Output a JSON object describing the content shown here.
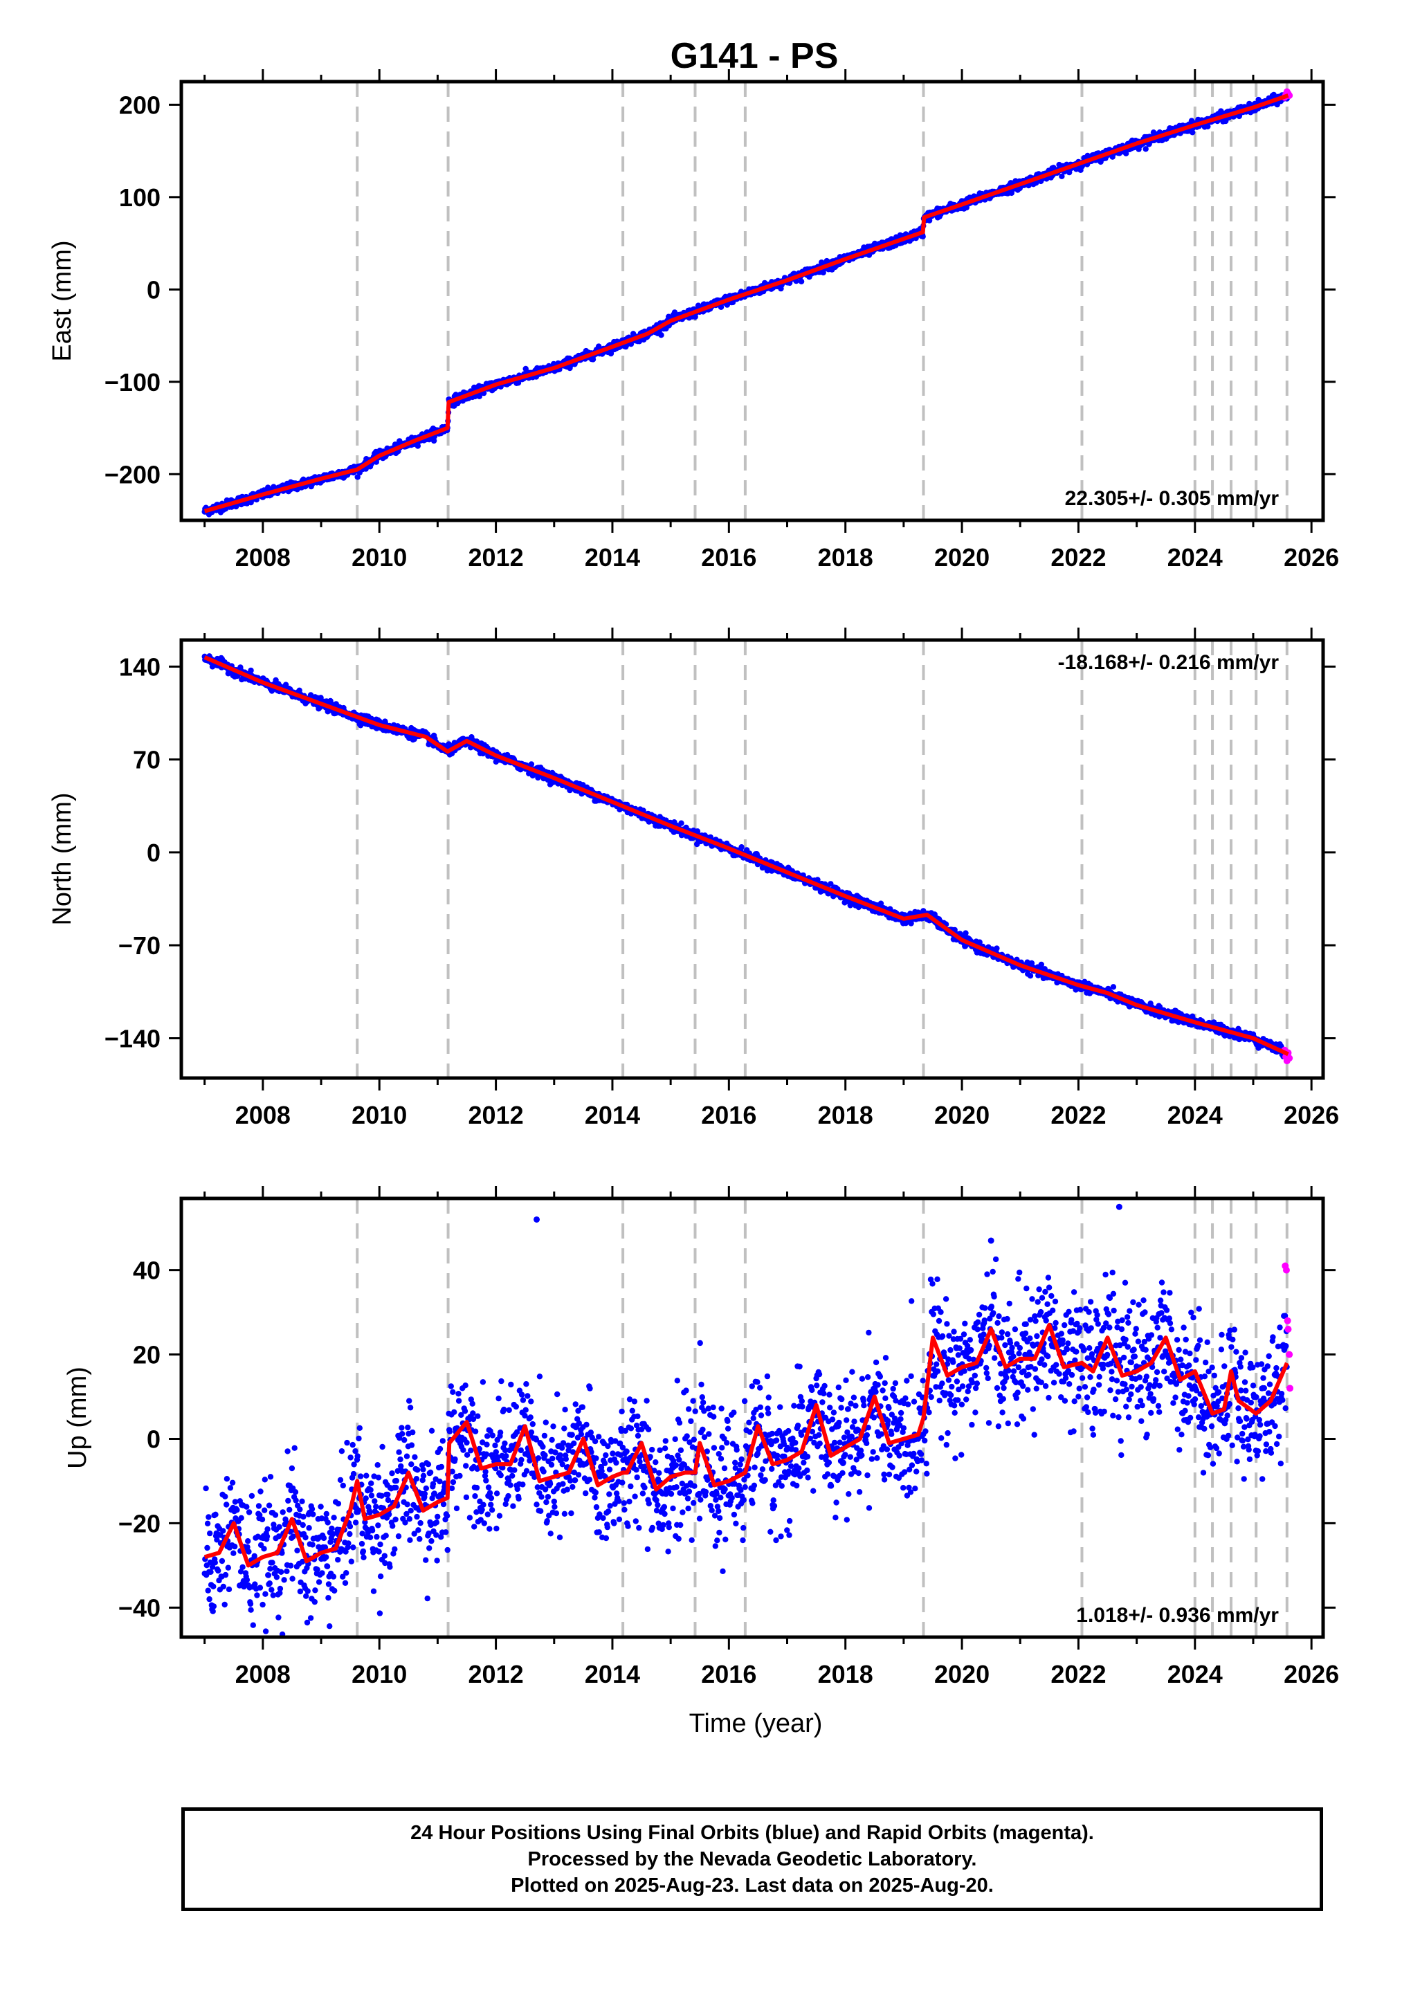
{
  "title": "G141 - PS",
  "xlabel": "Time (year)",
  "footer": {
    "line1": "24 Hour Positions Using Final Orbits (blue) and Rapid Orbits (magenta).",
    "line2": "Processed by the Nevada Geodetic Laboratory.",
    "line3": "Plotted on 2025-Aug-23. Last data on 2025-Aug-20."
  },
  "colors": {
    "final_orbits": "#0000ff",
    "rapid_orbits": "#ff00ff",
    "model": "#ff0000",
    "event_lines": "#c0c0c0"
  },
  "chart_data": [
    {
      "type": "scatter",
      "component": "east",
      "ylabel": "East (mm)",
      "xlim": [
        2006.6,
        2026.2
      ],
      "ylim": [
        -250,
        225
      ],
      "xticks": [
        2008,
        2010,
        2012,
        2014,
        2016,
        2018,
        2020,
        2022,
        2024,
        2026
      ],
      "yticks": [
        -200,
        -100,
        0,
        100,
        200
      ],
      "event_lines": [
        2009.62,
        2011.18,
        2014.18,
        2015.42,
        2016.28,
        2019.34,
        2022.06,
        2024.0,
        2024.3,
        2024.62,
        2025.05,
        2025.58
      ],
      "velocity_label": "22.305+/- 0.305 mm/yr",
      "label_position": "bottom-right",
      "model": {
        "x": [
          2007.0,
          2008.0,
          2009.0,
          2009.62,
          2010.0,
          2010.6,
          2011.17,
          2011.19,
          2012.0,
          2013.0,
          2014.0,
          2014.6,
          2015.0,
          2016.0,
          2017.0,
          2018.0,
          2019.33,
          2019.35,
          2020.0,
          2021.0,
          2022.0,
          2023.0,
          2024.0,
          2025.0,
          2025.6
        ],
        "y": [
          -240,
          -222,
          -205,
          -195,
          -180,
          -164,
          -150,
          -122,
          -103,
          -85,
          -62,
          -48,
          -34,
          -11,
          10,
          33,
          62,
          78,
          92,
          114,
          136,
          158,
          178,
          197,
          210
        ]
      },
      "rapid": {
        "x": [
          2025.54,
          2025.56,
          2025.58,
          2025.6,
          2025.62
        ],
        "y": [
          208,
          211,
          214,
          212,
          210
        ]
      },
      "scatter": 2.4
    },
    {
      "type": "scatter",
      "component": "north",
      "ylabel": "North (mm)",
      "xlim": [
        2006.6,
        2026.2
      ],
      "ylim": [
        -170,
        160
      ],
      "xticks": [
        2008,
        2010,
        2012,
        2014,
        2016,
        2018,
        2020,
        2022,
        2024,
        2026
      ],
      "yticks": [
        -140,
        -70,
        0,
        70,
        140
      ],
      "event_lines": [
        2009.62,
        2011.18,
        2014.18,
        2015.42,
        2016.28,
        2019.34,
        2022.06,
        2024.0,
        2024.3,
        2024.62,
        2025.05,
        2025.58
      ],
      "velocity_label": "-18.168+/- 0.216 mm/yr",
      "label_position": "top-right",
      "model": {
        "x": [
          2007.0,
          2008.0,
          2009.0,
          2010.0,
          2010.8,
          2011.17,
          2011.5,
          2012.0,
          2013.0,
          2014.0,
          2015.0,
          2016.0,
          2017.0,
          2018.0,
          2019.0,
          2019.4,
          2020.0,
          2021.0,
          2022.0,
          2022.5,
          2023.0,
          2024.0,
          2025.0,
          2025.6
        ],
        "y": [
          147,
          128,
          112,
          96,
          87,
          76,
          84,
          73,
          56,
          38,
          20,
          3,
          -15,
          -33,
          -50,
          -47,
          -66,
          -85,
          -100,
          -106,
          -115,
          -128,
          -140,
          -152
        ]
      },
      "rapid": {
        "x": [
          2025.54,
          2025.56,
          2025.58,
          2025.6,
          2025.62
        ],
        "y": [
          -149,
          -154,
          -157,
          -151,
          -155
        ]
      },
      "scatter": 1.8
    },
    {
      "type": "scatter",
      "component": "up",
      "ylabel": "Up (mm)",
      "xlim": [
        2006.6,
        2026.2
      ],
      "ylim": [
        -47,
        57
      ],
      "xticks": [
        2008,
        2010,
        2012,
        2014,
        2016,
        2018,
        2020,
        2022,
        2024,
        2026
      ],
      "yticks": [
        -40,
        -20,
        0,
        20,
        40
      ],
      "event_lines": [
        2009.62,
        2011.18,
        2014.18,
        2015.42,
        2016.28,
        2019.34,
        2022.06,
        2024.0,
        2024.3,
        2024.62,
        2025.05,
        2025.58
      ],
      "velocity_label": "1.018+/- 0.936 mm/yr",
      "label_position": "bottom-right",
      "model": {
        "x": [
          2007.0,
          2007.25,
          2007.5,
          2007.75,
          2008.0,
          2008.25,
          2008.5,
          2008.75,
          2009.0,
          2009.25,
          2009.5,
          2009.62,
          2009.75,
          2010.0,
          2010.25,
          2010.5,
          2010.75,
          2011.0,
          2011.17,
          2011.2,
          2011.5,
          2011.75,
          2012.0,
          2012.25,
          2012.5,
          2012.75,
          2013.0,
          2013.25,
          2013.5,
          2013.75,
          2014.0,
          2014.18,
          2014.25,
          2014.5,
          2014.75,
          2015.0,
          2015.25,
          2015.42,
          2015.5,
          2015.75,
          2016.0,
          2016.28,
          2016.5,
          2016.75,
          2017.0,
          2017.25,
          2017.5,
          2017.75,
          2018.0,
          2018.25,
          2018.5,
          2018.75,
          2019.0,
          2019.25,
          2019.34,
          2019.5,
          2019.75,
          2020.0,
          2020.25,
          2020.5,
          2020.75,
          2021.0,
          2021.25,
          2021.5,
          2021.75,
          2022.06,
          2022.25,
          2022.5,
          2022.75,
          2023.0,
          2023.25,
          2023.5,
          2023.75,
          2024.0,
          2024.3,
          2024.5,
          2024.62,
          2024.75,
          2025.05,
          2025.3,
          2025.58
        ],
        "y": [
          -28,
          -27,
          -20,
          -30,
          -28,
          -27,
          -19,
          -29,
          -27,
          -26,
          -17,
          -10,
          -19,
          -18,
          -16,
          -8,
          -17,
          -15,
          -14,
          -1,
          4,
          -7,
          -6,
          -6,
          3,
          -10,
          -9,
          -8,
          0,
          -11,
          -9,
          -8,
          -8,
          -1,
          -12,
          -9,
          -8,
          -8,
          -1,
          -11,
          -10,
          -8,
          3,
          -6,
          -5,
          -3,
          8,
          -4,
          -2,
          0,
          10,
          -1,
          0,
          1,
          5,
          24,
          15,
          17,
          18,
          26,
          17,
          19,
          19,
          27,
          17,
          18,
          16,
          24,
          15,
          16,
          18,
          24,
          14,
          16,
          6,
          7,
          16,
          9,
          6,
          9,
          18
        ]
      },
      "rapid": {
        "x": [
          2025.55,
          2025.57,
          2025.59,
          2025.6,
          2025.62,
          2025.63
        ],
        "y": [
          41,
          40,
          28,
          26,
          20,
          12
        ]
      },
      "outliers": {
        "x": [
          2012.7,
          2022.7,
          2020.5
        ],
        "y": [
          52,
          55,
          47
        ]
      },
      "scatter": 7.5
    }
  ]
}
